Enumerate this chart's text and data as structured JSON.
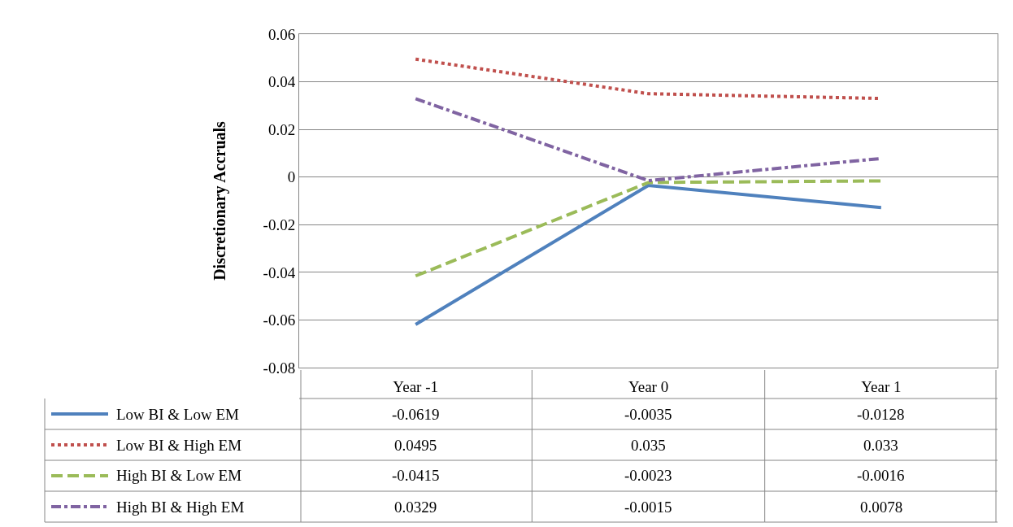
{
  "chart_data": {
    "type": "line",
    "ylabel": "Discretionary Accruals",
    "categories": [
      "Year -1",
      "Year 0",
      "Year 1"
    ],
    "series": [
      {
        "name": "Low BI & Low EM",
        "color": "#4f81bd",
        "line_style": "solid",
        "values": [
          -0.0619,
          -0.0035,
          -0.0128
        ]
      },
      {
        "name": "Low BI & High EM",
        "color": "#c0504d",
        "line_style": "dotted",
        "values": [
          0.0495,
          0.035,
          0.033
        ]
      },
      {
        "name": "High BI & Low EM",
        "color": "#9bbb59",
        "line_style": "dashed",
        "values": [
          -0.0415,
          -0.0023,
          -0.0016
        ]
      },
      {
        "name": "High BI & High EM",
        "color": "#8064a2",
        "line_style": "dashdot",
        "values": [
          0.0329,
          -0.0015,
          0.0078
        ]
      }
    ],
    "ylim": [
      -0.08,
      0.06
    ],
    "yticks": [
      -0.08,
      -0.06,
      -0.04,
      -0.02,
      0,
      0.02,
      0.04,
      0.06
    ],
    "grid": "y",
    "legend": "bottom",
    "data_labels": true,
    "marker": "none"
  }
}
